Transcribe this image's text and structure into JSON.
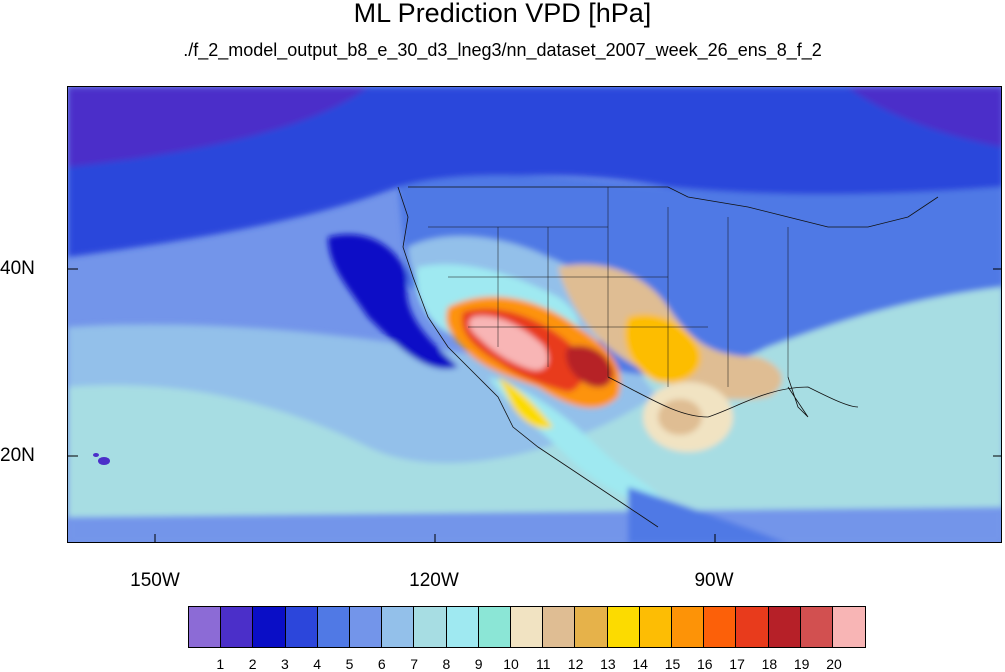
{
  "title": "ML Prediction VPD [hPa]",
  "subtitle": "./f_2_model_output_b8_e_30_d3_lneg3/nn_dataset_2007_week_26_ens_8_f_2",
  "lat_labels": [
    {
      "text": "40N",
      "lat": 40
    },
    {
      "text": "20N",
      "lat": 20
    }
  ],
  "lon_labels": [
    {
      "text": "150W",
      "lon": -150
    },
    {
      "text": "120W",
      "lon": -120
    },
    {
      "text": "90W",
      "lon": -90
    }
  ],
  "colorbar": {
    "colors": [
      "#8c6bd6",
      "#4b2fc9",
      "#0a0ec6",
      "#2c46db",
      "#5079e5",
      "#7395ea",
      "#93c0ea",
      "#a7dde3",
      "#9fe9f1",
      "#8be6d6",
      "#f1e3c2",
      "#dfbd93",
      "#e6b24a",
      "#fcdb00",
      "#fdbd04",
      "#fd9307",
      "#fc6009",
      "#e83b1c",
      "#b62028",
      "#d25050",
      "#f8b5b5"
    ],
    "labels": [
      "1",
      "2",
      "3",
      "4",
      "5",
      "6",
      "7",
      "8",
      "9",
      "10",
      "11",
      "12",
      "13",
      "14",
      "15",
      "16",
      "17",
      "18",
      "19",
      "20"
    ]
  }
}
